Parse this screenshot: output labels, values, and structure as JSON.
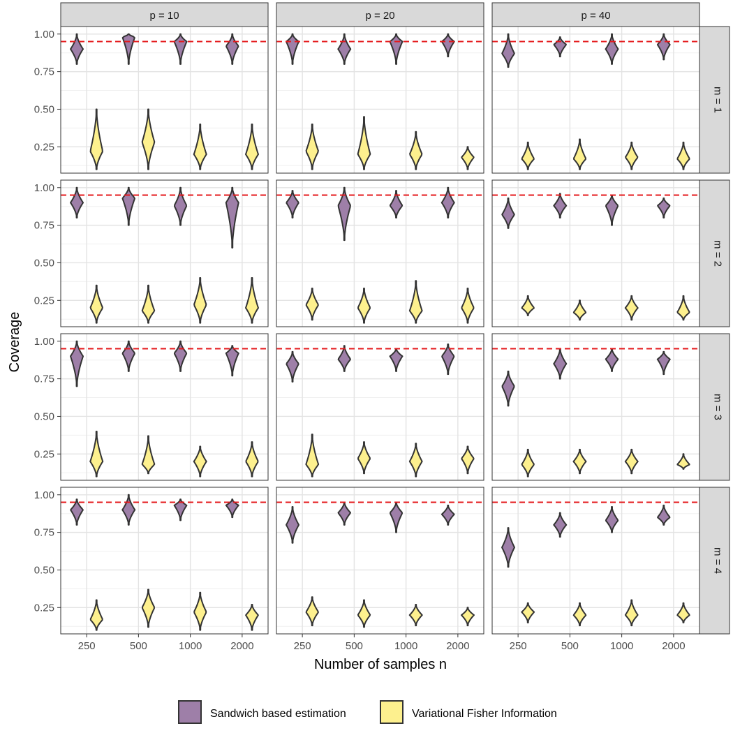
{
  "chart_data": {
    "type": "violin",
    "title": "",
    "xlabel": "Number of samples n",
    "ylabel": "Coverage",
    "x_categories": [
      "250",
      "500",
      "1000",
      "2000"
    ],
    "y_ticks": [
      "0.25",
      "0.50",
      "0.75",
      "1.00"
    ],
    "ylim": [
      0.075,
      1.05
    ],
    "reference_line": {
      "y": 0.95,
      "style": "dashed",
      "color": "#e41a1c"
    },
    "column_facets": [
      "p = 10",
      "p = 20",
      "p = 40"
    ],
    "row_facets": [
      "m = 1",
      "m = 2",
      "m = 3",
      "m = 4"
    ],
    "legend": {
      "position": "bottom"
    },
    "series": [
      {
        "name": "Sandwich based estimation",
        "color": "#9e7fa8"
      },
      {
        "name": "Variational Fisher Information",
        "color": "#fdf08e"
      }
    ],
    "panels": [
      {
        "p": "p = 10",
        "m": "m = 1",
        "sandwich": [
          [
            0.8,
            1.0,
            0.9
          ],
          [
            0.8,
            1.0,
            0.98
          ],
          [
            0.8,
            1.0,
            0.95
          ],
          [
            0.8,
            1.0,
            0.92
          ]
        ],
        "vfi": [
          [
            0.1,
            0.5,
            0.22
          ],
          [
            0.1,
            0.5,
            0.28
          ],
          [
            0.1,
            0.4,
            0.2
          ],
          [
            0.1,
            0.4,
            0.2
          ]
        ]
      },
      {
        "p": "p = 20",
        "m": "m = 1",
        "sandwich": [
          [
            0.8,
            1.0,
            0.95
          ],
          [
            0.8,
            1.0,
            0.9
          ],
          [
            0.8,
            1.0,
            0.95
          ],
          [
            0.85,
            1.0,
            0.95
          ]
        ],
        "vfi": [
          [
            0.1,
            0.4,
            0.22
          ],
          [
            0.1,
            0.45,
            0.2
          ],
          [
            0.1,
            0.35,
            0.2
          ],
          [
            0.1,
            0.25,
            0.18
          ]
        ]
      },
      {
        "p": "p = 40",
        "m": "m = 1",
        "sandwich": [
          [
            0.78,
            1.0,
            0.87
          ],
          [
            0.85,
            0.98,
            0.93
          ],
          [
            0.8,
            1.0,
            0.9
          ],
          [
            0.83,
            1.0,
            0.93
          ]
        ],
        "vfi": [
          [
            0.1,
            0.28,
            0.17
          ],
          [
            0.1,
            0.3,
            0.17
          ],
          [
            0.1,
            0.28,
            0.18
          ],
          [
            0.1,
            0.28,
            0.17
          ]
        ]
      },
      {
        "p": "p = 10",
        "m": "m = 2",
        "sandwich": [
          [
            0.8,
            1.0,
            0.9
          ],
          [
            0.75,
            1.0,
            0.93
          ],
          [
            0.75,
            1.0,
            0.88
          ],
          [
            0.6,
            1.0,
            0.9
          ]
        ],
        "vfi": [
          [
            0.1,
            0.35,
            0.2
          ],
          [
            0.1,
            0.35,
            0.18
          ],
          [
            0.1,
            0.4,
            0.22
          ],
          [
            0.1,
            0.4,
            0.2
          ]
        ]
      },
      {
        "p": "p = 20",
        "m": "m = 2",
        "sandwich": [
          [
            0.8,
            0.98,
            0.9
          ],
          [
            0.65,
            1.0,
            0.88
          ],
          [
            0.8,
            0.98,
            0.88
          ],
          [
            0.8,
            1.0,
            0.9
          ]
        ],
        "vfi": [
          [
            0.12,
            0.33,
            0.22
          ],
          [
            0.1,
            0.33,
            0.2
          ],
          [
            0.1,
            0.38,
            0.18
          ],
          [
            0.1,
            0.33,
            0.2
          ]
        ]
      },
      {
        "p": "p = 40",
        "m": "m = 2",
        "sandwich": [
          [
            0.73,
            0.93,
            0.82
          ],
          [
            0.8,
            0.96,
            0.88
          ],
          [
            0.75,
            0.95,
            0.88
          ],
          [
            0.8,
            0.93,
            0.88
          ]
        ],
        "vfi": [
          [
            0.15,
            0.28,
            0.2
          ],
          [
            0.12,
            0.25,
            0.17
          ],
          [
            0.12,
            0.28,
            0.2
          ],
          [
            0.12,
            0.28,
            0.17
          ]
        ]
      },
      {
        "p": "p = 10",
        "m": "m = 3",
        "sandwich": [
          [
            0.7,
            1.0,
            0.9
          ],
          [
            0.8,
            1.0,
            0.92
          ],
          [
            0.8,
            1.0,
            0.92
          ],
          [
            0.77,
            0.97,
            0.92
          ]
        ],
        "vfi": [
          [
            0.1,
            0.4,
            0.2
          ],
          [
            0.12,
            0.37,
            0.18
          ],
          [
            0.1,
            0.3,
            0.2
          ],
          [
            0.1,
            0.33,
            0.2
          ]
        ]
      },
      {
        "p": "p = 20",
        "m": "m = 3",
        "sandwich": [
          [
            0.73,
            0.93,
            0.85
          ],
          [
            0.8,
            0.97,
            0.88
          ],
          [
            0.8,
            0.95,
            0.9
          ],
          [
            0.78,
            0.98,
            0.9
          ]
        ],
        "vfi": [
          [
            0.1,
            0.38,
            0.18
          ],
          [
            0.12,
            0.33,
            0.22
          ],
          [
            0.1,
            0.32,
            0.2
          ],
          [
            0.12,
            0.3,
            0.22
          ]
        ]
      },
      {
        "p": "p = 40",
        "m": "m = 3",
        "sandwich": [
          [
            0.57,
            0.8,
            0.7
          ],
          [
            0.75,
            0.95,
            0.85
          ],
          [
            0.8,
            0.95,
            0.88
          ],
          [
            0.78,
            0.93,
            0.88
          ]
        ],
        "vfi": [
          [
            0.1,
            0.28,
            0.18
          ],
          [
            0.12,
            0.28,
            0.2
          ],
          [
            0.12,
            0.28,
            0.2
          ],
          [
            0.15,
            0.25,
            0.18
          ]
        ]
      },
      {
        "p": "p = 10",
        "m": "m = 4",
        "sandwich": [
          [
            0.8,
            0.97,
            0.9
          ],
          [
            0.8,
            1.0,
            0.9
          ],
          [
            0.83,
            0.97,
            0.93
          ],
          [
            0.85,
            0.97,
            0.93
          ]
        ],
        "vfi": [
          [
            0.1,
            0.3,
            0.17
          ],
          [
            0.12,
            0.37,
            0.25
          ],
          [
            0.1,
            0.35,
            0.22
          ],
          [
            0.1,
            0.27,
            0.2
          ]
        ]
      },
      {
        "p": "p = 20",
        "m": "m = 4",
        "sandwich": [
          [
            0.68,
            0.92,
            0.8
          ],
          [
            0.8,
            0.95,
            0.88
          ],
          [
            0.75,
            0.95,
            0.88
          ],
          [
            0.8,
            0.93,
            0.87
          ]
        ],
        "vfi": [
          [
            0.13,
            0.32,
            0.22
          ],
          [
            0.12,
            0.3,
            0.2
          ],
          [
            0.13,
            0.27,
            0.2
          ],
          [
            0.13,
            0.25,
            0.2
          ]
        ]
      },
      {
        "p": "p = 40",
        "m": "m = 4",
        "sandwich": [
          [
            0.52,
            0.78,
            0.65
          ],
          [
            0.72,
            0.88,
            0.8
          ],
          [
            0.75,
            0.92,
            0.83
          ],
          [
            0.8,
            0.93,
            0.85
          ]
        ],
        "vfi": [
          [
            0.15,
            0.28,
            0.22
          ],
          [
            0.13,
            0.28,
            0.2
          ],
          [
            0.13,
            0.3,
            0.2
          ],
          [
            0.15,
            0.28,
            0.2
          ]
        ]
      }
    ]
  }
}
